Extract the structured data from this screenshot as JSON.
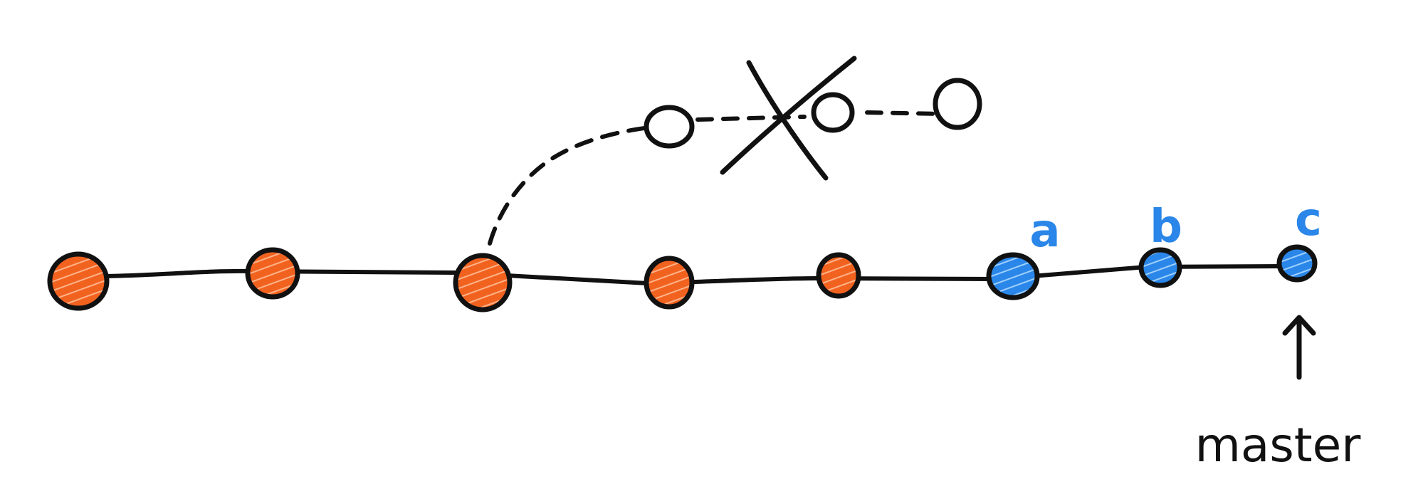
{
  "diagram": {
    "colors": {
      "stroke": "#111111",
      "main_commit": "#f2621f",
      "hatch_main": "#ffb38a",
      "new_commit": "#2a86e8",
      "hatch_new": "#9fd0ff",
      "label": "#2a86e8"
    },
    "main_commits": [
      {
        "id": "m1"
      },
      {
        "id": "m2"
      },
      {
        "id": "m3"
      },
      {
        "id": "m4"
      },
      {
        "id": "m5"
      }
    ],
    "new_commits": [
      {
        "id": "a",
        "label": "a"
      },
      {
        "id": "b",
        "label": "b"
      },
      {
        "id": "c",
        "label": "c"
      }
    ],
    "abandoned_commits": [
      {
        "id": "d1"
      },
      {
        "id": "d2"
      },
      {
        "id": "d3"
      }
    ],
    "branch": {
      "label": "master",
      "target": "c"
    }
  }
}
